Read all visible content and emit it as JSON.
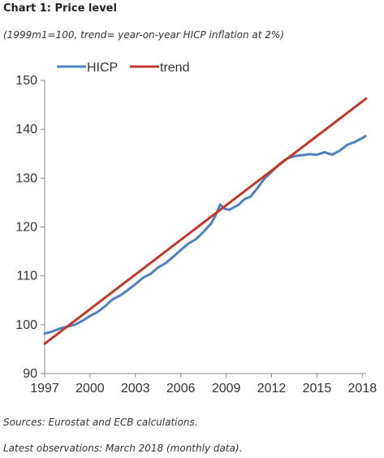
{
  "title": "Chart 1: Price level",
  "subtitle": "(1999m1=100, trend= year-on-year HICP inflation at 2%)",
  "footer": {
    "sources": "Sources: Eurostat and ECB calculations.",
    "latest": "Latest observations: March 2018 (monthly data)."
  },
  "colors": {
    "hicp": "#4f81bd",
    "trend": "#c0392b",
    "axis": "#888888"
  },
  "chart_data": {
    "type": "line",
    "title": "Chart 1: Price level",
    "subtitle": "(1999m1=100, trend= year-on-year HICP inflation at 2%)",
    "xlim": [
      1997.0,
      2018.25
    ],
    "ylim": [
      90,
      150
    ],
    "x_ticks": [
      1997,
      2000,
      2003,
      2006,
      2009,
      2012,
      2015,
      2018
    ],
    "x_tick_labels": [
      "1997",
      "2000",
      "2003",
      "2006",
      "2009",
      "2012",
      "2015",
      "2018"
    ],
    "y_ticks": [
      90,
      100,
      110,
      120,
      130,
      140,
      150
    ],
    "y_tick_labels": [
      "90",
      "100",
      "110",
      "120",
      "130",
      "140",
      "150"
    ],
    "grid": false,
    "legend_position": "top-left",
    "series": [
      {
        "name": "HICP",
        "color": "#4f81bd",
        "x": [
          1997.0,
          1997.5,
          1998.0,
          1998.5,
          1999.0,
          1999.5,
          2000.0,
          2000.5,
          2001.0,
          2001.5,
          2002.0,
          2002.5,
          2003.0,
          2003.5,
          2004.0,
          2004.5,
          2005.0,
          2005.5,
          2006.0,
          2006.5,
          2007.0,
          2007.5,
          2008.0,
          2008.3,
          2008.6,
          2008.9,
          2009.2,
          2009.5,
          2009.8,
          2010.2,
          2010.6,
          2011.0,
          2011.5,
          2012.0,
          2012.5,
          2013.0,
          2013.5,
          2014.0,
          2014.5,
          2015.0,
          2015.5,
          2016.0,
          2016.5,
          2017.0,
          2017.5,
          2018.0,
          2018.2
        ],
        "values": [
          98.2,
          98.6,
          99.2,
          99.6,
          100.0,
          100.8,
          101.8,
          102.6,
          103.8,
          105.2,
          106.0,
          107.1,
          108.3,
          109.6,
          110.4,
          111.7,
          112.6,
          113.9,
          115.3,
          116.6,
          117.5,
          119.0,
          120.7,
          122.4,
          124.6,
          123.7,
          123.5,
          124.0,
          124.5,
          125.7,
          126.2,
          127.7,
          129.8,
          131.3,
          132.8,
          134.0,
          134.5,
          134.7,
          134.9,
          134.8,
          135.3,
          134.8,
          135.6,
          136.8,
          137.4,
          138.2,
          138.6
        ]
      },
      {
        "name": "trend",
        "color": "#c0392b",
        "x": [
          1997.0,
          2018.25
        ],
        "values": [
          96.1,
          146.3
        ]
      }
    ]
  }
}
